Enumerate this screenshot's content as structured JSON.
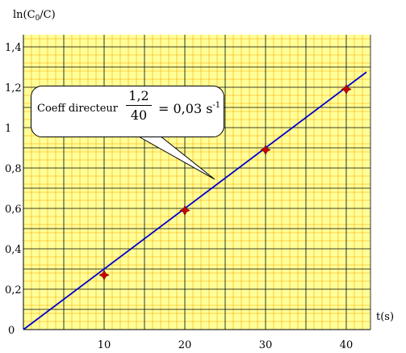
{
  "chart_data": {
    "type": "scatter",
    "title": "",
    "ylabel": "ln(C0/C)",
    "ylabel_main": "ln(C",
    "ylabel_sub": "0",
    "ylabel_end": "/C)",
    "xlabel": "t(s)",
    "xlim": [
      0,
      43
    ],
    "ylim": [
      0,
      1.5
    ],
    "x_ticks": [
      10,
      20,
      30,
      40
    ],
    "x_tick_labels": [
      "10",
      "20",
      "30",
      "40"
    ],
    "y_ticks": [
      0,
      0.2,
      0.4,
      0.6,
      0.8,
      1,
      1.2,
      1.4
    ],
    "y_tick_labels": [
      "0",
      "0,2",
      "0,4",
      "0,6",
      "0,8",
      "1",
      "1,2",
      "1,4"
    ],
    "grid": true,
    "series": [
      {
        "x": [
          10,
          20,
          30,
          40
        ],
        "y": [
          0.27,
          0.59,
          0.89,
          1.19
        ],
        "marker": "diamond",
        "color": "#cc0000"
      }
    ],
    "fit_line": {
      "slope": 0.03,
      "intercept": 0,
      "x_range": [
        0,
        42.5
      ],
      "color": "#0000cc"
    },
    "annotation": {
      "label": "Coeff directeur",
      "numerator": "1,2",
      "denominator": "40",
      "result": "= 0,03 s",
      "unit_exp": "-1"
    },
    "colors": {
      "background": "#ffff99",
      "grid_minor": "#ffa500",
      "grid_major": "#000000"
    }
  }
}
